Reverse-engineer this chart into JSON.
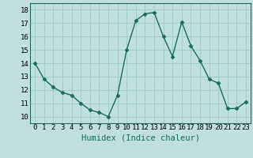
{
  "x": [
    0,
    1,
    2,
    3,
    4,
    5,
    6,
    7,
    8,
    9,
    10,
    11,
    12,
    13,
    14,
    15,
    16,
    17,
    18,
    19,
    20,
    21,
    22,
    23
  ],
  "y": [
    14.0,
    12.8,
    12.2,
    11.8,
    11.6,
    11.0,
    10.5,
    10.3,
    10.0,
    11.6,
    15.0,
    17.2,
    17.7,
    17.8,
    16.0,
    14.5,
    17.1,
    15.3,
    14.2,
    12.8,
    12.5,
    10.6,
    10.6,
    11.1
  ],
  "line_color": "#1a6b5a",
  "marker": "D",
  "marker_size": 2.5,
  "bg_color": "#c0e0e0",
  "grid_color": "#a0cccc",
  "xlabel": "Humidex (Indice chaleur)",
  "xlim": [
    -0.5,
    23.5
  ],
  "ylim": [
    9.5,
    18.5
  ],
  "yticks": [
    10,
    11,
    12,
    13,
    14,
    15,
    16,
    17,
    18
  ],
  "xticks": [
    0,
    1,
    2,
    3,
    4,
    5,
    6,
    7,
    8,
    9,
    10,
    11,
    12,
    13,
    14,
    15,
    16,
    17,
    18,
    19,
    20,
    21,
    22,
    23
  ],
  "tick_fontsize": 6.5,
  "xlabel_fontsize": 7.5
}
